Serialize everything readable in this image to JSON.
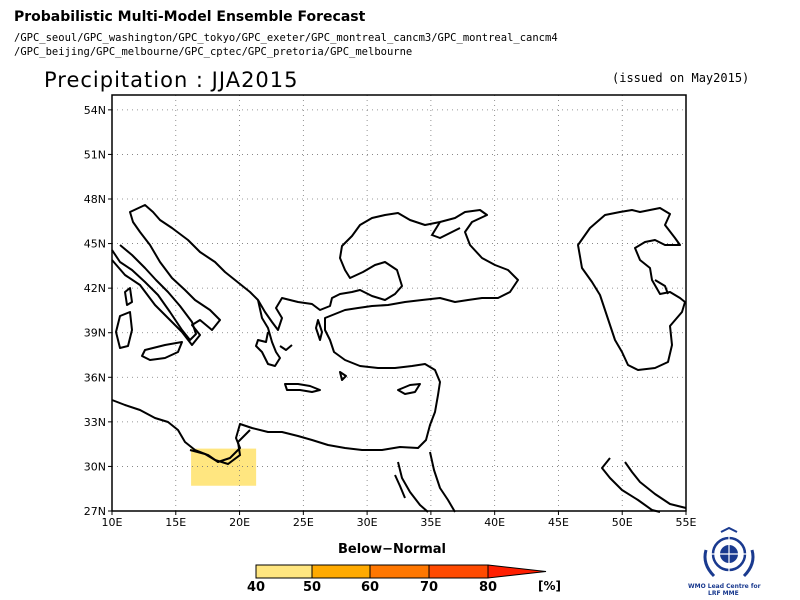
{
  "header": {
    "title": "Probabilistic Multi-Model Ensemble Forecast",
    "models_line1": "/GPC_seoul/GPC_washington/GPC_tokyo/GPC_exeter/GPC_montreal_cancm3/GPC_montreal_cancm4",
    "models_line2": "/GPC_beijing/GPC_melbourne/GPC_cptec/GPC_pretoria/GPC_melbourne",
    "heading": "Precipitation : JJA2015",
    "issued": "(issued on May2015)"
  },
  "map": {
    "lat_ticks": [
      "54N",
      "51N",
      "48N",
      "45N",
      "42N",
      "39N",
      "36N",
      "33N",
      "30N",
      "27N"
    ],
    "lon_ticks": [
      "10E",
      "15E",
      "20E",
      "25E",
      "30E",
      "35E",
      "40E",
      "45E",
      "50E",
      "55E"
    ],
    "extent": {
      "lon": [
        10,
        55
      ],
      "lat": [
        27,
        55
      ]
    },
    "grid": "dotted",
    "shaded_regions": [
      {
        "category": "Below-Normal",
        "probability_bin": "40-50",
        "lon": [
          16.2,
          21.3
        ],
        "lat": [
          28.7,
          31.2
        ],
        "color": "#ffe680"
      }
    ]
  },
  "legend": {
    "title": "Below−Normal",
    "labels": [
      "40",
      "50",
      "60",
      "70",
      "80"
    ],
    "unit": "[%]",
    "colors": [
      "#ffe680",
      "#ffaa00",
      "#ff7700",
      "#ff4a00",
      "#ff1e00"
    ]
  },
  "logo": {
    "line1": "WMO Lead Centre for",
    "line2": "LRF MME"
  }
}
